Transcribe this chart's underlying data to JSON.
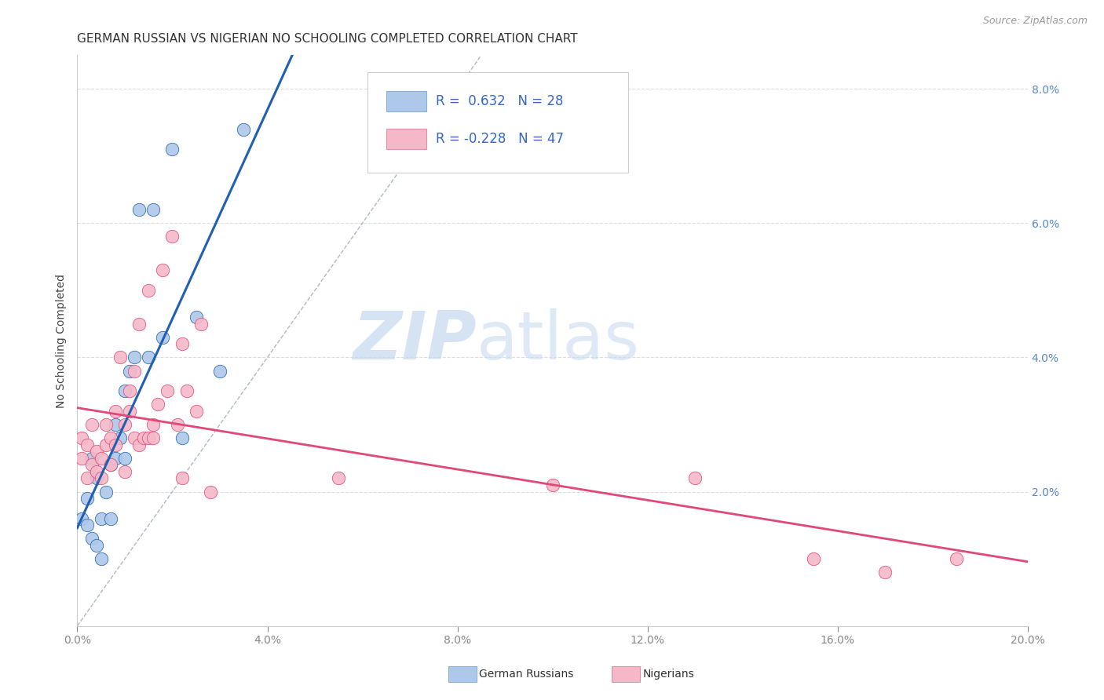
{
  "title": "GERMAN RUSSIAN VS NIGERIAN NO SCHOOLING COMPLETED CORRELATION CHART",
  "source": "Source: ZipAtlas.com",
  "ylabel": "No Schooling Completed",
  "xlim": [
    0.0,
    0.2
  ],
  "ylim": [
    0.0,
    0.085
  ],
  "xticks": [
    0.0,
    0.04,
    0.08,
    0.12,
    0.16,
    0.2
  ],
  "yticks": [
    0.0,
    0.02,
    0.04,
    0.06,
    0.08
  ],
  "xtick_labels": [
    "0.0%",
    "4.0%",
    "8.0%",
    "12.0%",
    "16.0%",
    "20.0%"
  ],
  "ytick_labels": [
    "",
    "2.0%",
    "4.0%",
    "6.0%",
    "8.0%"
  ],
  "blue_R": 0.632,
  "blue_N": 28,
  "pink_R": -0.228,
  "pink_N": 47,
  "blue_color": "#adc8e8",
  "pink_color": "#f5b8c8",
  "blue_line_color": "#2060b0",
  "pink_line_color": "#e04878",
  "watermark_zip": "ZIP",
  "watermark_atlas": "atlas",
  "legend_label_blue": "German Russians",
  "legend_label_pink": "Nigerians",
  "blue_scatter_x": [
    0.001,
    0.002,
    0.002,
    0.003,
    0.003,
    0.004,
    0.004,
    0.005,
    0.005,
    0.006,
    0.007,
    0.007,
    0.008,
    0.008,
    0.009,
    0.01,
    0.01,
    0.011,
    0.012,
    0.013,
    0.015,
    0.016,
    0.018,
    0.02,
    0.022,
    0.025,
    0.03,
    0.035
  ],
  "blue_scatter_y": [
    0.016,
    0.019,
    0.015,
    0.025,
    0.013,
    0.022,
    0.012,
    0.016,
    0.01,
    0.02,
    0.024,
    0.016,
    0.025,
    0.03,
    0.028,
    0.025,
    0.035,
    0.038,
    0.04,
    0.062,
    0.04,
    0.062,
    0.043,
    0.071,
    0.028,
    0.046,
    0.038,
    0.074
  ],
  "pink_scatter_x": [
    0.001,
    0.001,
    0.002,
    0.002,
    0.003,
    0.003,
    0.004,
    0.004,
    0.005,
    0.005,
    0.006,
    0.006,
    0.007,
    0.007,
    0.008,
    0.008,
    0.009,
    0.01,
    0.01,
    0.011,
    0.011,
    0.012,
    0.012,
    0.013,
    0.013,
    0.014,
    0.015,
    0.015,
    0.016,
    0.016,
    0.017,
    0.018,
    0.019,
    0.02,
    0.021,
    0.022,
    0.022,
    0.023,
    0.025,
    0.026,
    0.028,
    0.055,
    0.1,
    0.13,
    0.155,
    0.17,
    0.185
  ],
  "pink_scatter_y": [
    0.025,
    0.028,
    0.022,
    0.027,
    0.03,
    0.024,
    0.026,
    0.023,
    0.025,
    0.022,
    0.027,
    0.03,
    0.024,
    0.028,
    0.027,
    0.032,
    0.04,
    0.023,
    0.03,
    0.032,
    0.035,
    0.028,
    0.038,
    0.027,
    0.045,
    0.028,
    0.028,
    0.05,
    0.028,
    0.03,
    0.033,
    0.053,
    0.035,
    0.058,
    0.03,
    0.042,
    0.022,
    0.035,
    0.032,
    0.045,
    0.02,
    0.022,
    0.021,
    0.022,
    0.01,
    0.008,
    0.01
  ],
  "background_color": "#ffffff",
  "grid_color": "#dddddd"
}
